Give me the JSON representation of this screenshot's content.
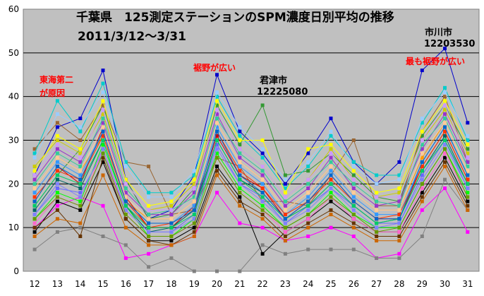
{
  "chart_data": {
    "type": "line",
    "title": "千葉県　125測定ステーションのSPM濃度日別平均の推移",
    "subtitle": "2011/3/12～3/31",
    "xlabel": "",
    "ylabel": "",
    "x": [
      12,
      13,
      14,
      15,
      16,
      17,
      18,
      19,
      20,
      21,
      22,
      23,
      24,
      25,
      26,
      27,
      28,
      29,
      30,
      31
    ],
    "ylim": [
      0,
      60
    ],
    "yticks": [
      0,
      10,
      20,
      30,
      40,
      50,
      60
    ],
    "grid": true,
    "legend": "none",
    "background_color": "#c0c0c0",
    "annotations": [
      {
        "text": "東海第二",
        "color": "#ff0000"
      },
      {
        "text": "が原因",
        "color": "#ff0000"
      },
      {
        "text": "裾野が広い",
        "color": "#ff0000"
      },
      {
        "text": "君津市",
        "color": "#000000"
      },
      {
        "text": "12225080",
        "color": "#000000"
      },
      {
        "text": "市川市",
        "color": "#000000"
      },
      {
        "text": "12203530",
        "color": "#000000"
      },
      {
        "text": "最も裾野が広い",
        "color": "#ff0000"
      }
    ],
    "series": [
      {
        "color": "#0000cc",
        "values": [
          22,
          33,
          35,
          46,
          21,
          12,
          14,
          22,
          45,
          32,
          27,
          20,
          27,
          35,
          25,
          20,
          25,
          46,
          51,
          34
        ]
      },
      {
        "color": "#339933",
        "values": [
          15,
          22,
          28,
          38,
          21,
          12,
          13,
          19,
          38,
          29,
          38,
          22,
          23,
          27,
          22,
          17,
          16,
          31,
          38,
          28
        ]
      },
      {
        "color": "#ff00ff",
        "values": [
          10,
          15,
          17,
          15,
          3,
          4,
          6,
          8,
          18,
          11,
          10,
          7,
          8,
          10,
          8,
          3,
          4,
          14,
          19,
          9
        ]
      },
      {
        "color": "#808080",
        "values": [
          5,
          9,
          10,
          8,
          6,
          1,
          3,
          0,
          0,
          0,
          6,
          4,
          5,
          5,
          5,
          3,
          3,
          8,
          21,
          14
        ]
      },
      {
        "color": "#996633",
        "values": [
          28,
          34,
          30,
          38,
          25,
          24,
          13,
          14,
          26,
          24,
          16,
          16,
          15,
          22,
          30,
          15,
          15,
          32,
          40,
          25
        ]
      },
      {
        "color": "#00cccc",
        "values": [
          27,
          39,
          32,
          43,
          25,
          18,
          18,
          22,
          40,
          31,
          26,
          19,
          24,
          31,
          25,
          22,
          22,
          34,
          42,
          30
        ]
      },
      {
        "color": "#ff9900",
        "values": [
          19,
          26,
          23,
          31,
          16,
          12,
          12,
          16,
          34,
          25,
          21,
          14,
          18,
          24,
          18,
          14,
          14,
          26,
          34,
          23
        ]
      },
      {
        "color": "#6666ff",
        "values": [
          13,
          19,
          18,
          27,
          14,
          9,
          9,
          13,
          29,
          20,
          17,
          11,
          15,
          19,
          15,
          11,
          11,
          22,
          30,
          19
        ]
      },
      {
        "color": "#000000",
        "values": [
          9,
          16,
          14,
          25,
          12,
          7,
          7,
          10,
          24,
          17,
          4,
          9,
          12,
          16,
          12,
          9,
          9,
          18,
          26,
          16
        ]
      },
      {
        "color": "#cccc00",
        "values": [
          24,
          30,
          27,
          36,
          20,
          14,
          15,
          20,
          37,
          28,
          24,
          17,
          21,
          28,
          21,
          17,
          18,
          30,
          37,
          27
        ]
      },
      {
        "color": "#cc0000",
        "values": [
          16,
          24,
          20,
          33,
          17,
          10,
          10,
          15,
          31,
          22,
          19,
          12,
          16,
          22,
          16,
          12,
          12,
          24,
          32,
          21
        ]
      },
      {
        "color": "#00ff00",
        "values": [
          12,
          18,
          16,
          29,
          15,
          8,
          8,
          12,
          27,
          19,
          15,
          10,
          13,
          18,
          13,
          10,
          10,
          20,
          28,
          18
        ]
      },
      {
        "color": "#9933cc",
        "values": [
          21,
          28,
          25,
          34,
          18,
          13,
          13,
          18,
          36,
          26,
          22,
          15,
          19,
          26,
          19,
          15,
          16,
          28,
          36,
          25
        ]
      },
      {
        "color": "#ff66cc",
        "values": [
          11,
          17,
          15,
          28,
          13,
          8,
          8,
          11,
          26,
          18,
          14,
          9,
          12,
          17,
          12,
          9,
          9,
          19,
          27,
          17
        ]
      },
      {
        "color": "#3399ff",
        "values": [
          18,
          25,
          22,
          32,
          16,
          11,
          11,
          15,
          33,
          24,
          20,
          13,
          17,
          23,
          17,
          13,
          13,
          25,
          33,
          22
        ]
      },
      {
        "color": "#006666",
        "values": [
          14,
          21,
          19,
          30,
          15,
          9,
          10,
          14,
          30,
          21,
          18,
          12,
          15,
          20,
          15,
          11,
          12,
          23,
          31,
          20
        ]
      },
      {
        "color": "#ffff00",
        "values": [
          23,
          31,
          28,
          39,
          21,
          15,
          16,
          21,
          39,
          30,
          30,
          18,
          28,
          29,
          23,
          18,
          19,
          32,
          39,
          29
        ]
      },
      {
        "color": "#663300",
        "values": [
          10,
          14,
          8,
          26,
          12,
          7,
          6,
          9,
          23,
          16,
          13,
          8,
          11,
          14,
          11,
          8,
          8,
          17,
          25,
          15
        ]
      },
      {
        "color": "#99ccff",
        "values": [
          26,
          36,
          33,
          41,
          24,
          17,
          17,
          23,
          41,
          33,
          28,
          21,
          25,
          32,
          24,
          20,
          21,
          35,
          41,
          31
        ]
      },
      {
        "color": "#ff3300",
        "values": [
          17,
          23,
          21,
          31,
          16,
          10,
          11,
          14,
          32,
          23,
          19,
          13,
          16,
          21,
          16,
          12,
          13,
          24,
          32,
          21
        ]
      },
      {
        "color": "#33cc99",
        "values": [
          20,
          27,
          24,
          35,
          19,
          13,
          14,
          17,
          35,
          27,
          23,
          16,
          20,
          25,
          20,
          16,
          15,
          29,
          35,
          24
        ]
      },
      {
        "color": "#8080ff",
        "values": [
          13,
          20,
          17,
          28,
          14,
          9,
          9,
          12,
          28,
          20,
          16,
          11,
          14,
          19,
          14,
          10,
          11,
          21,
          29,
          19
        ]
      },
      {
        "color": "#cc6600",
        "values": [
          8,
          12,
          11,
          22,
          10,
          6,
          6,
          8,
          22,
          15,
          12,
          7,
          10,
          13,
          10,
          7,
          7,
          16,
          24,
          14
        ]
      },
      {
        "color": "#00cc66",
        "values": [
          15,
          22,
          20,
          30,
          15,
          10,
          10,
          13,
          30,
          21,
          17,
          12,
          15,
          20,
          15,
          11,
          12,
          23,
          30,
          20
        ]
      },
      {
        "color": "#ffcc99",
        "values": [
          19,
          26,
          23,
          33,
          17,
          12,
          12,
          16,
          34,
          25,
          21,
          14,
          18,
          24,
          18,
          14,
          14,
          27,
          34,
          23
        ]
      },
      {
        "color": "#0066cc",
        "values": [
          16,
          24,
          21,
          32,
          16,
          11,
          11,
          14,
          32,
          22,
          18,
          12,
          16,
          22,
          16,
          12,
          12,
          25,
          33,
          22
        ]
      },
      {
        "color": "#cc99ff",
        "values": [
          22,
          29,
          26,
          37,
          20,
          14,
          14,
          19,
          37,
          28,
          24,
          17,
          21,
          27,
          21,
          17,
          17,
          30,
          38,
          26
        ]
      },
      {
        "color": "#669900",
        "values": [
          12,
          17,
          15,
          27,
          13,
          8,
          8,
          11,
          26,
          18,
          14,
          10,
          13,
          17,
          13,
          9,
          10,
          20,
          28,
          17
        ]
      }
    ]
  }
}
